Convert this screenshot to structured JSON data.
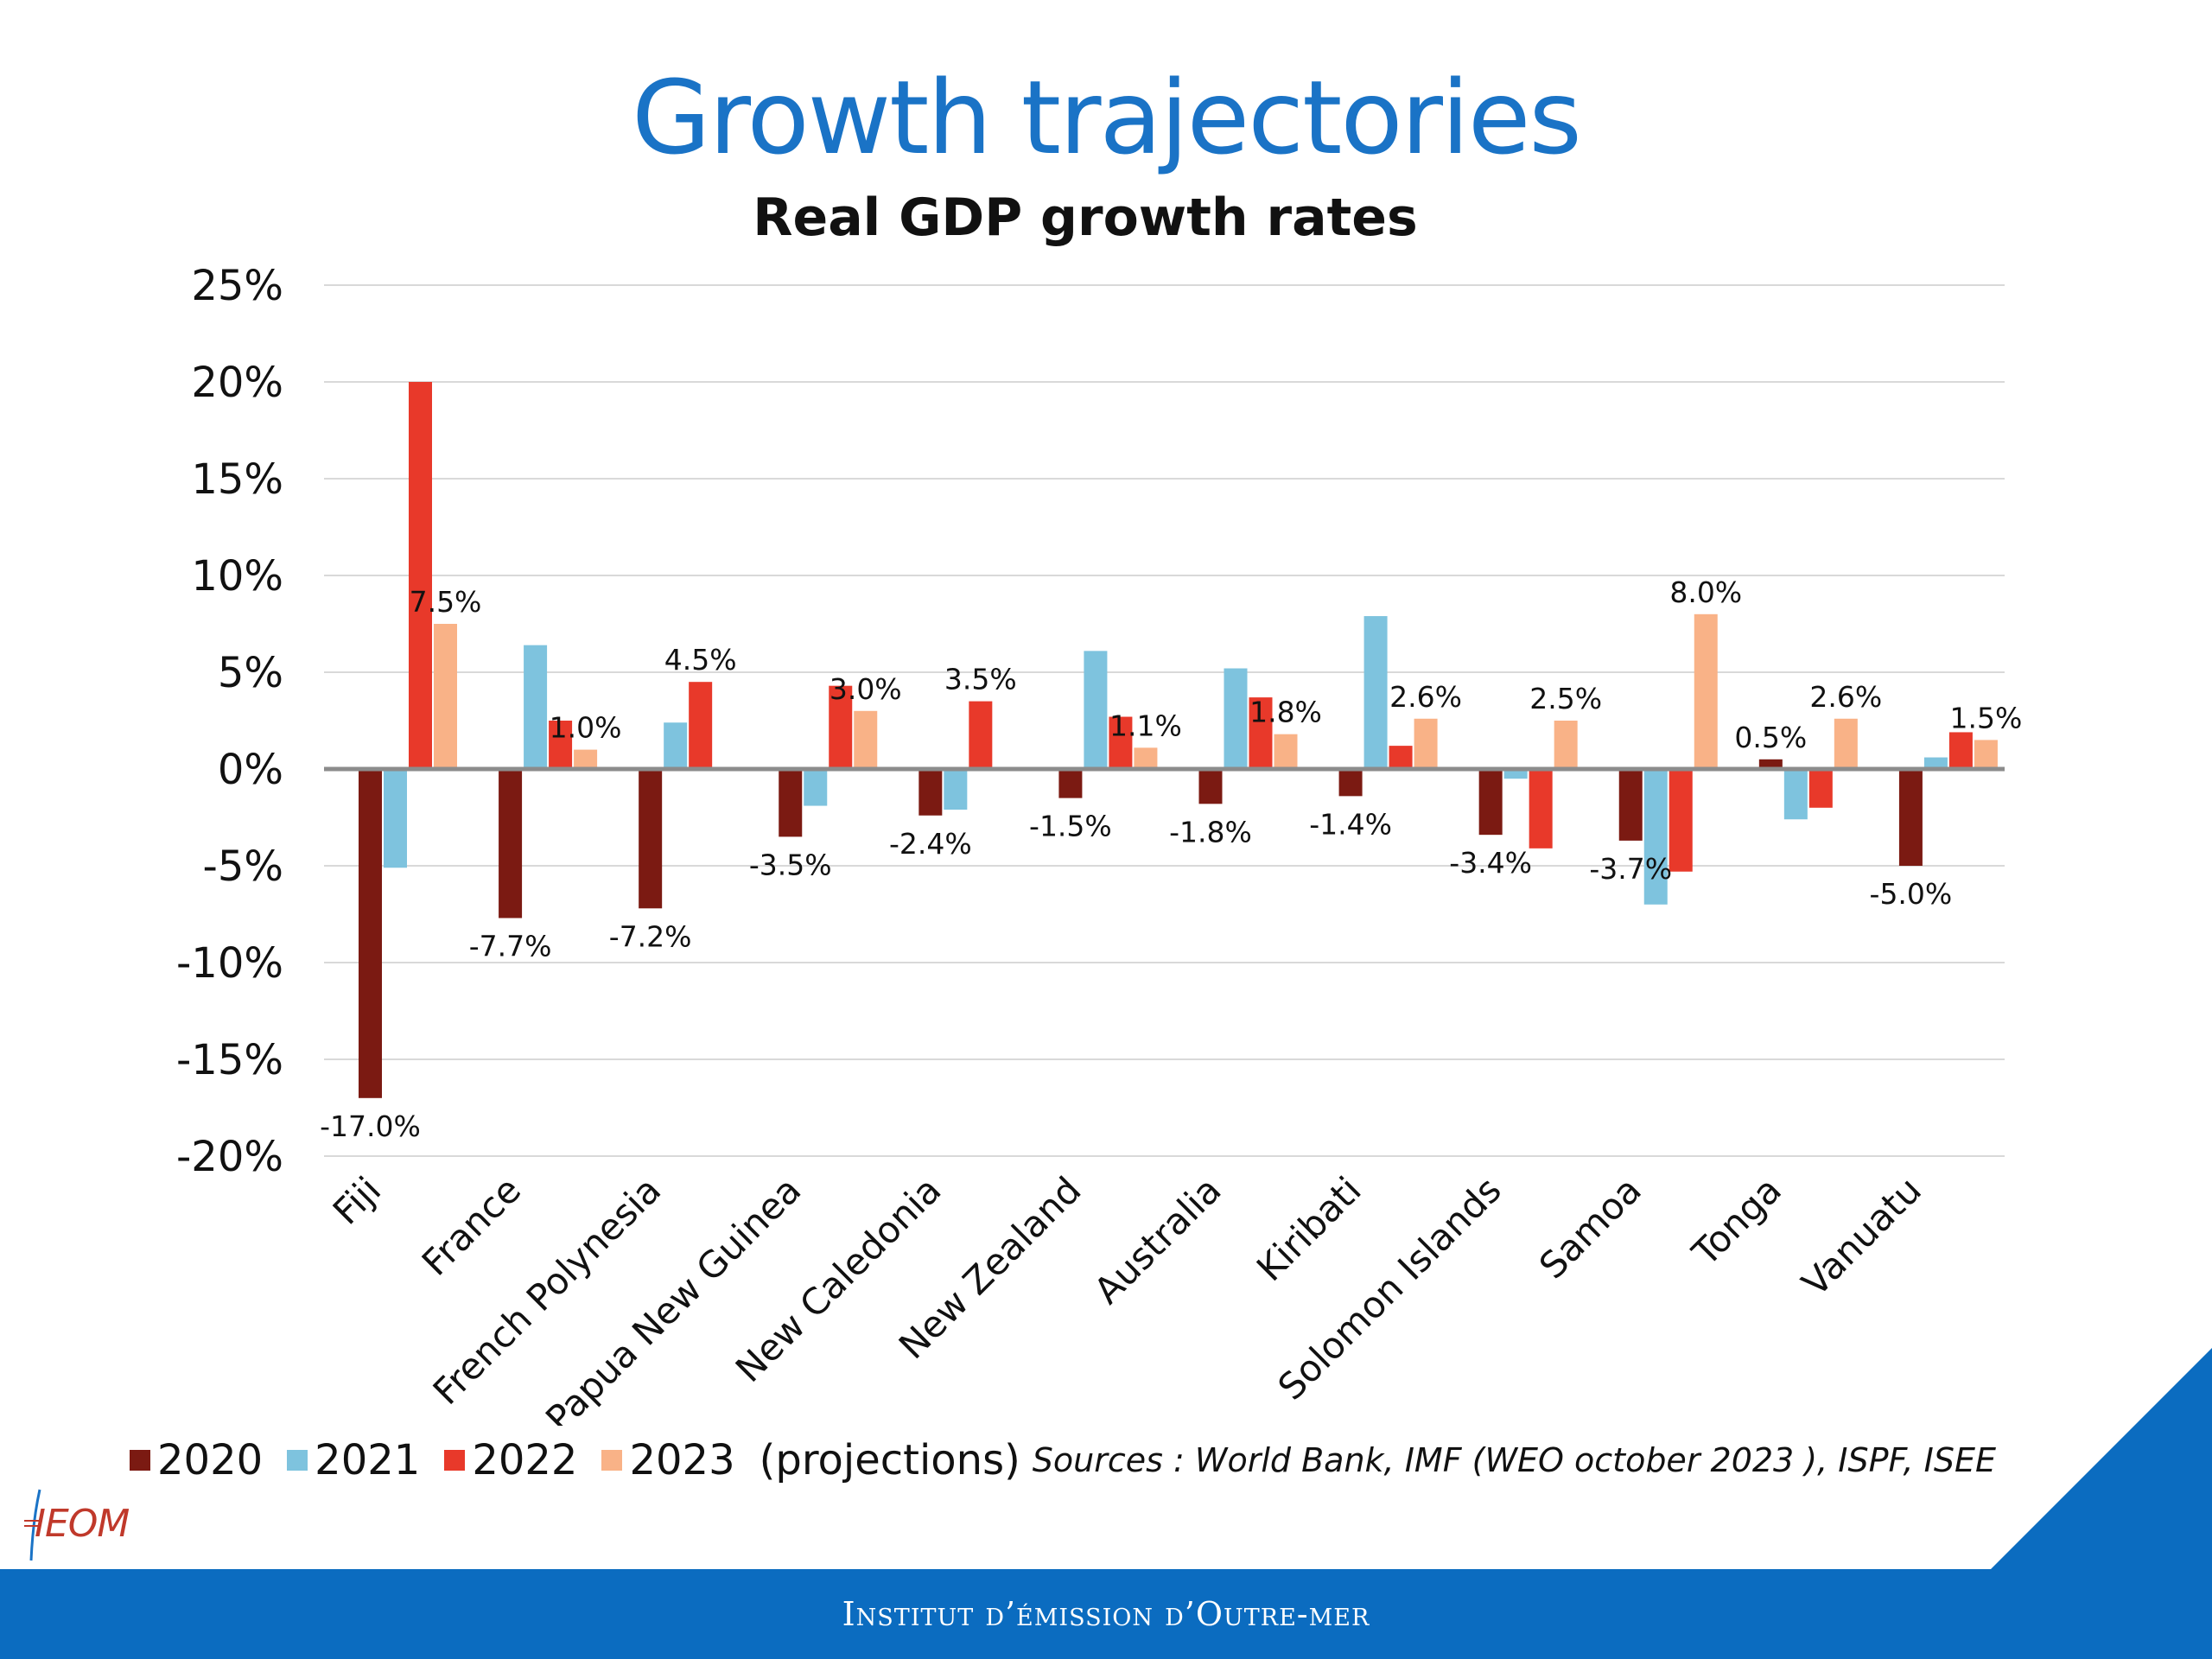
{
  "slide": {
    "title": "Growth trajectories",
    "footer": "Institut d’émission d’Outre-mer",
    "logo_text": "IEOM",
    "sources": "Sources : World Bank, IMF (WEO october 2023 ), ISPF, ISEE"
  },
  "legend": {
    "items": [
      {
        "label": "2020",
        "color": "#7b1a12"
      },
      {
        "label": "2021",
        "color": "#7ec3de"
      },
      {
        "label": "2022",
        "color": "#e8392a"
      },
      {
        "label": "2023",
        "color": "#f9b287"
      }
    ],
    "suffix": "(projections)"
  },
  "chart_data": {
    "type": "bar",
    "title": "Real GDP growth rates",
    "xlabel": "",
    "ylabel": "",
    "ylim": [
      -20,
      25
    ],
    "yticks": [
      25,
      20,
      15,
      10,
      5,
      0,
      -5,
      -10,
      -15,
      -20
    ],
    "ytick_labels": [
      "25%",
      "20%",
      "15%",
      "10%",
      "5%",
      "0%",
      "-5%",
      "-10%",
      "-15%",
      "-20%"
    ],
    "grid": true,
    "legend_position": "bottom-left",
    "categories": [
      "Fiji",
      "France",
      "French Polynesia",
      "Papua New Guinea",
      "New Caledonia",
      "New Zealand",
      "Australia",
      "Kiribati",
      "Solomon Islands",
      "Samoa",
      "Tonga",
      "Vanuatu"
    ],
    "series": [
      {
        "name": "2020",
        "color": "#7b1a12",
        "values": [
          -17.0,
          -7.7,
          -7.2,
          -3.5,
          -2.4,
          -1.5,
          -1.8,
          -1.4,
          -3.4,
          -3.7,
          0.5,
          -5.0
        ]
      },
      {
        "name": "2021",
        "color": "#7ec3de",
        "values": [
          -5.1,
          6.4,
          2.4,
          -1.9,
          -2.1,
          6.1,
          5.2,
          7.9,
          -0.5,
          -7.0,
          -2.6,
          0.6
        ]
      },
      {
        "name": "2022",
        "color": "#e8392a",
        "values": [
          20.0,
          2.5,
          4.5,
          4.3,
          3.5,
          2.7,
          3.7,
          1.2,
          -4.1,
          -5.3,
          -2.0,
          1.9
        ]
      },
      {
        "name": "2023",
        "color": "#f9b287",
        "values": [
          7.5,
          1.0,
          0.0,
          3.0,
          0.0,
          1.1,
          1.8,
          2.6,
          2.5,
          8.0,
          2.6,
          1.5
        ]
      }
    ],
    "data_labels": [
      {
        "category": "Fiji",
        "series": "2020",
        "text": "-17.0%"
      },
      {
        "category": "Fiji",
        "series": "2023",
        "text": "7.5%"
      },
      {
        "category": "France",
        "series": "2020",
        "text": "-7.7%"
      },
      {
        "category": "France",
        "series": "2023",
        "text": "1.0%"
      },
      {
        "category": "French Polynesia",
        "series": "2020",
        "text": "-7.2%"
      },
      {
        "category": "French Polynesia",
        "series": "2022",
        "text": "4.5%"
      },
      {
        "category": "Papua New Guinea",
        "series": "2020",
        "text": "-3.5%"
      },
      {
        "category": "Papua New Guinea",
        "series": "2023",
        "text": "3.0%"
      },
      {
        "category": "New Caledonia",
        "series": "2020",
        "text": "-2.4%"
      },
      {
        "category": "New Caledonia",
        "series": "2022",
        "text": "3.5%"
      },
      {
        "category": "New Zealand",
        "series": "2020",
        "text": "-1.5%"
      },
      {
        "category": "New Zealand",
        "series": "2023",
        "text": "1.1%"
      },
      {
        "category": "Australia",
        "series": "2020",
        "text": "-1.8%"
      },
      {
        "category": "Australia",
        "series": "2023",
        "text": "1.8%"
      },
      {
        "category": "Kiribati",
        "series": "2020",
        "text": "-1.4%"
      },
      {
        "category": "Kiribati",
        "series": "2023",
        "text": "2.6%"
      },
      {
        "category": "Solomon Islands",
        "series": "2020",
        "text": "-3.4%"
      },
      {
        "category": "Solomon Islands",
        "series": "2023",
        "text": "2.5%"
      },
      {
        "category": "Samoa",
        "series": "2020",
        "text": "-3.7%"
      },
      {
        "category": "Samoa",
        "series": "2023",
        "text": "8.0%"
      },
      {
        "category": "Tonga",
        "series": "2020",
        "text": "0.5%"
      },
      {
        "category": "Tonga",
        "series": "2023",
        "text": "2.6%"
      },
      {
        "category": "Vanuatu",
        "series": "2020",
        "text": "-5.0%"
      },
      {
        "category": "Vanuatu",
        "series": "2023",
        "text": "1.5%"
      }
    ]
  }
}
